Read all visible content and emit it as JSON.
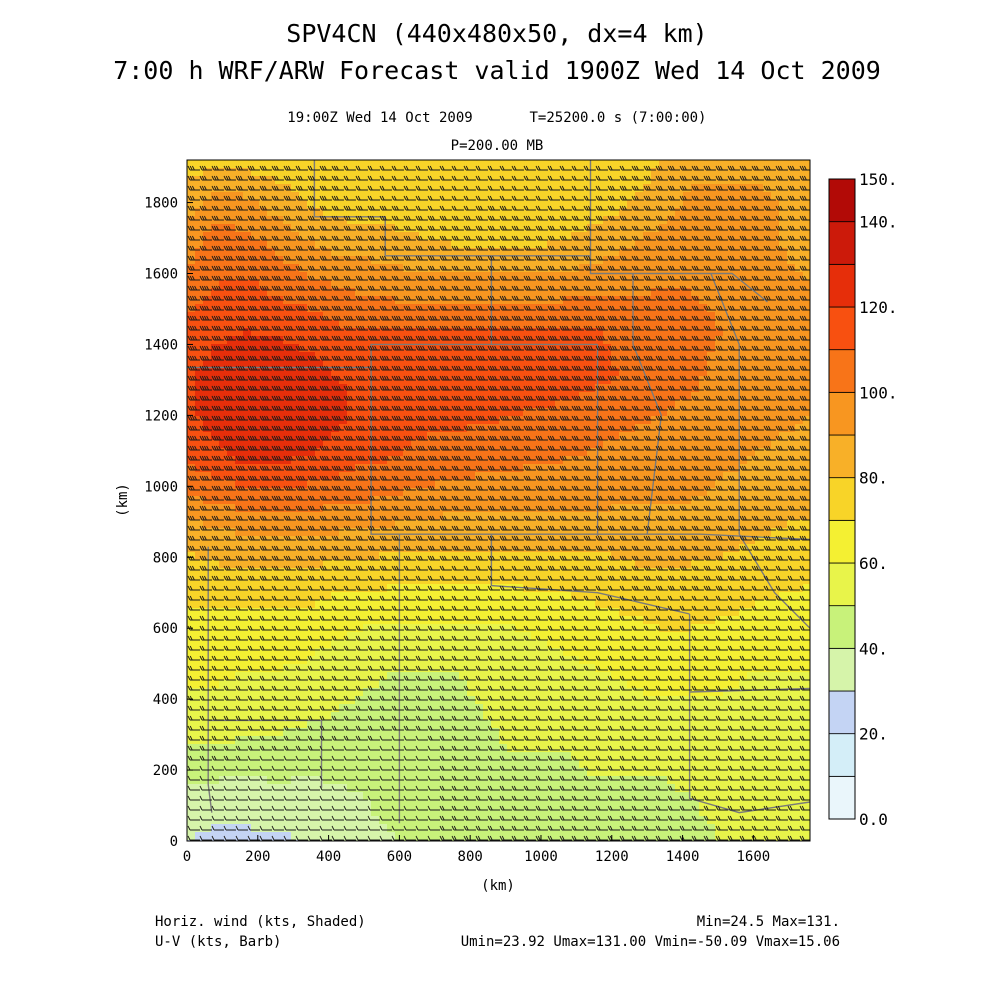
{
  "title_line1": "SPV4CN (440x480x50, dx=4 km)",
  "title_line2": "7:00 h WRF/ARW Forecast valid 1900Z Wed 14 Oct 2009",
  "subtitle_time": "19:00Z Wed 14 Oct 2009",
  "subtitle_seconds": "T=25200.0 s (7:00:00)",
  "subtitle_level": "P=200.00 MB",
  "footer": {
    "left_line1": "Horiz. wind (kts, Shaded)",
    "left_line2": "U-V (kts, Barb)",
    "right_line1": "Min=24.5 Max=131.",
    "right_line2": "Umin=23.92 Umax=131.00 Vmin=-50.09 Vmax=15.06"
  },
  "chart_data": {
    "type": "heatmap",
    "xlabel": "(km)",
    "ylabel": "(km)",
    "xlim": [
      0,
      1760
    ],
    "ylim": [
      0,
      1920
    ],
    "x_ticks": [
      0,
      200,
      400,
      600,
      800,
      1000,
      1200,
      1400,
      1600
    ],
    "y_ticks": [
      0,
      200,
      400,
      600,
      800,
      1000,
      1200,
      1400,
      1600,
      1800
    ],
    "colorbar": {
      "levels": [
        0,
        10,
        20,
        30,
        40,
        50,
        60,
        70,
        80,
        90,
        100,
        110,
        120,
        130,
        140,
        150
      ],
      "colors": [
        "#eaf6fb",
        "#d4eef8",
        "#c4d4f4",
        "#d6f4aa",
        "#c8f27a",
        "#e8f44a",
        "#f4f032",
        "#f8d428",
        "#f8b028",
        "#f89620",
        "#f87418",
        "#f85010",
        "#e62e0a",
        "#cc1a0a",
        "#b20a06"
      ],
      "tick_labels": [
        "0.0",
        "20.",
        "40.",
        "60.",
        "80.",
        "100.",
        "120.",
        "140.",
        "150."
      ],
      "tick_values": [
        0,
        20,
        40,
        60,
        80,
        100,
        120,
        140,
        150
      ]
    },
    "field": "Horizontal wind speed (kts) at 200 mb with U-V wind barbs",
    "min": 24.5,
    "max": 131,
    "speed_grid_kts": [
      [
        74,
        78,
        76,
        74,
        72,
        76,
        74,
        72,
        72,
        72,
        74,
        72,
        70,
        70,
        70,
        74,
        80,
        86,
        86,
        88,
        86,
        84
      ],
      [
        86,
        94,
        92,
        86,
        80,
        76,
        74,
        74,
        72,
        72,
        74,
        74,
        72,
        72,
        76,
        80,
        86,
        92,
        94,
        92,
        90,
        86
      ],
      [
        96,
        106,
        104,
        98,
        92,
        88,
        86,
        84,
        82,
        80,
        80,
        80,
        80,
        82,
        86,
        90,
        94,
        96,
        96,
        94,
        90,
        88
      ],
      [
        104,
        110,
        112,
        108,
        104,
        100,
        98,
        96,
        94,
        94,
        94,
        94,
        94,
        96,
        96,
        98,
        100,
        100,
        98,
        96,
        92,
        90
      ],
      [
        112,
        118,
        120,
        118,
        116,
        112,
        110,
        110,
        110,
        112,
        112,
        112,
        112,
        112,
        110,
        106,
        104,
        102,
        100,
        96,
        92,
        90
      ],
      [
        118,
        124,
        128,
        128,
        124,
        120,
        118,
        118,
        118,
        118,
        118,
        118,
        118,
        116,
        112,
        108,
        104,
        102,
        98,
        96,
        92,
        90
      ],
      [
        118,
        124,
        128,
        128,
        126,
        122,
        118,
        114,
        112,
        112,
        112,
        110,
        108,
        106,
        104,
        102,
        100,
        98,
        96,
        94,
        92,
        90
      ],
      [
        112,
        118,
        122,
        122,
        120,
        116,
        112,
        110,
        108,
        106,
        104,
        102,
        102,
        100,
        98,
        96,
        96,
        94,
        92,
        90,
        88,
        86
      ],
      [
        96,
        102,
        104,
        106,
        104,
        102,
        100,
        98,
        96,
        94,
        94,
        94,
        92,
        92,
        92,
        90,
        90,
        90,
        88,
        86,
        84,
        82
      ],
      [
        82,
        84,
        86,
        88,
        88,
        86,
        84,
        84,
        82,
        82,
        82,
        82,
        82,
        82,
        82,
        84,
        84,
        84,
        82,
        80,
        78,
        76
      ],
      [
        74,
        76,
        76,
        76,
        74,
        72,
        72,
        70,
        70,
        70,
        70,
        70,
        72,
        72,
        74,
        76,
        76,
        76,
        76,
        74,
        72,
        70
      ],
      [
        66,
        66,
        66,
        66,
        66,
        62,
        60,
        58,
        58,
        58,
        58,
        60,
        62,
        64,
        66,
        68,
        70,
        70,
        68,
        66,
        64,
        64
      ],
      [
        62,
        62,
        60,
        60,
        58,
        54,
        52,
        50,
        50,
        50,
        52,
        54,
        56,
        58,
        60,
        62,
        64,
        64,
        62,
        60,
        60,
        60
      ],
      [
        56,
        56,
        54,
        54,
        52,
        50,
        48,
        46,
        46,
        48,
        50,
        52,
        52,
        54,
        56,
        56,
        58,
        58,
        58,
        58,
        58,
        58
      ],
      [
        48,
        48,
        46,
        46,
        44,
        44,
        44,
        44,
        44,
        46,
        48,
        50,
        50,
        50,
        52,
        52,
        52,
        54,
        54,
        54,
        56,
        56
      ],
      [
        36,
        34,
        34,
        36,
        36,
        38,
        40,
        42,
        44,
        46,
        48,
        48,
        48,
        48,
        48,
        48,
        48,
        50,
        52,
        52,
        54,
        54
      ],
      [
        30,
        28,
        28,
        28,
        30,
        34,
        38,
        40,
        44,
        46,
        48,
        48,
        48,
        46,
        46,
        46,
        46,
        48,
        50,
        50,
        52,
        52
      ]
    ]
  }
}
